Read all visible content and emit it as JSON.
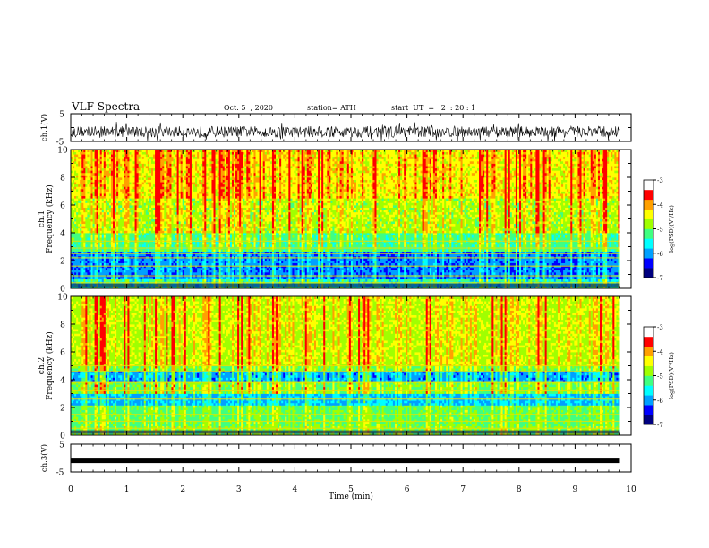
{
  "header": {
    "title": "VLF Spectra",
    "date": "Oct. 5  , 2020",
    "station": "station= ATH",
    "start": "start  UT  =   2  : 20 : 1"
  },
  "panels": {
    "ch1_voltage": {
      "ylabel": "ch.1(V)",
      "ticks": [
        "5",
        "-5"
      ]
    },
    "ch1_spec": {
      "ylabel": "ch.1\nFrequency (kHz)",
      "ticks": [
        "0",
        "2",
        "4",
        "6",
        "8",
        "10"
      ]
    },
    "ch2_spec": {
      "ylabel": "ch.2\nFrequency (kHz)",
      "ticks": [
        "0",
        "2",
        "4",
        "6",
        "8",
        "10"
      ]
    },
    "ch3_voltage": {
      "ylabel": "ch.3(V)",
      "ticks": [
        "5",
        "-5"
      ]
    }
  },
  "colorbar": {
    "label": "log(PSD)(V²/Hz)",
    "ticks": [
      "-3",
      "-4",
      "-5",
      "-6",
      "-7"
    ],
    "colors": [
      "#000080",
      "#0000ff",
      "#00a0ff",
      "#00ffff",
      "#40ff80",
      "#a0ff00",
      "#ffff00",
      "#ffa000",
      "#ff0000",
      "#ffffff"
    ]
  },
  "xaxis": {
    "label": "Time  (min)",
    "ticks": [
      "0",
      "1",
      "2",
      "3",
      "4",
      "5",
      "6",
      "7",
      "8",
      "9",
      "10"
    ]
  },
  "chart_data": [
    {
      "type": "line",
      "title": "VLF Spectra",
      "ylabel": "ch.1(V)",
      "xlabel": "Time (min)",
      "xlim": [
        0,
        10
      ],
      "ylim": [
        -5,
        5
      ],
      "series": [
        {
          "x": [
            0,
            9.8
          ],
          "y": [
            -1.5,
            -1.5
          ]
        }
      ]
    },
    {
      "type": "heatmap",
      "ylabel": "ch.1 Frequency (kHz)",
      "xlim": [
        0,
        10
      ],
      "ylim": [
        0,
        10
      ],
      "colorbar_label": "log(PSD)(V²/Hz)",
      "clim": [
        -7,
        -3
      ],
      "data_x_max": 9.8
    },
    {
      "type": "heatmap",
      "ylabel": "ch.2 Frequency (kHz)",
      "xlim": [
        0,
        10
      ],
      "ylim": [
        0,
        10
      ],
      "colorbar_label": "log(PSD)(V²/Hz)",
      "clim": [
        -7,
        -3
      ],
      "data_x_max": 9.8
    },
    {
      "type": "line",
      "ylabel": "ch.3(V)",
      "xlabel": "Time (min)",
      "xlim": [
        0,
        10
      ],
      "ylim": [
        -5,
        5
      ],
      "series": [
        {
          "x": [
            0,
            9.8
          ],
          "y": [
            -1.0,
            -1.0
          ]
        }
      ]
    }
  ]
}
